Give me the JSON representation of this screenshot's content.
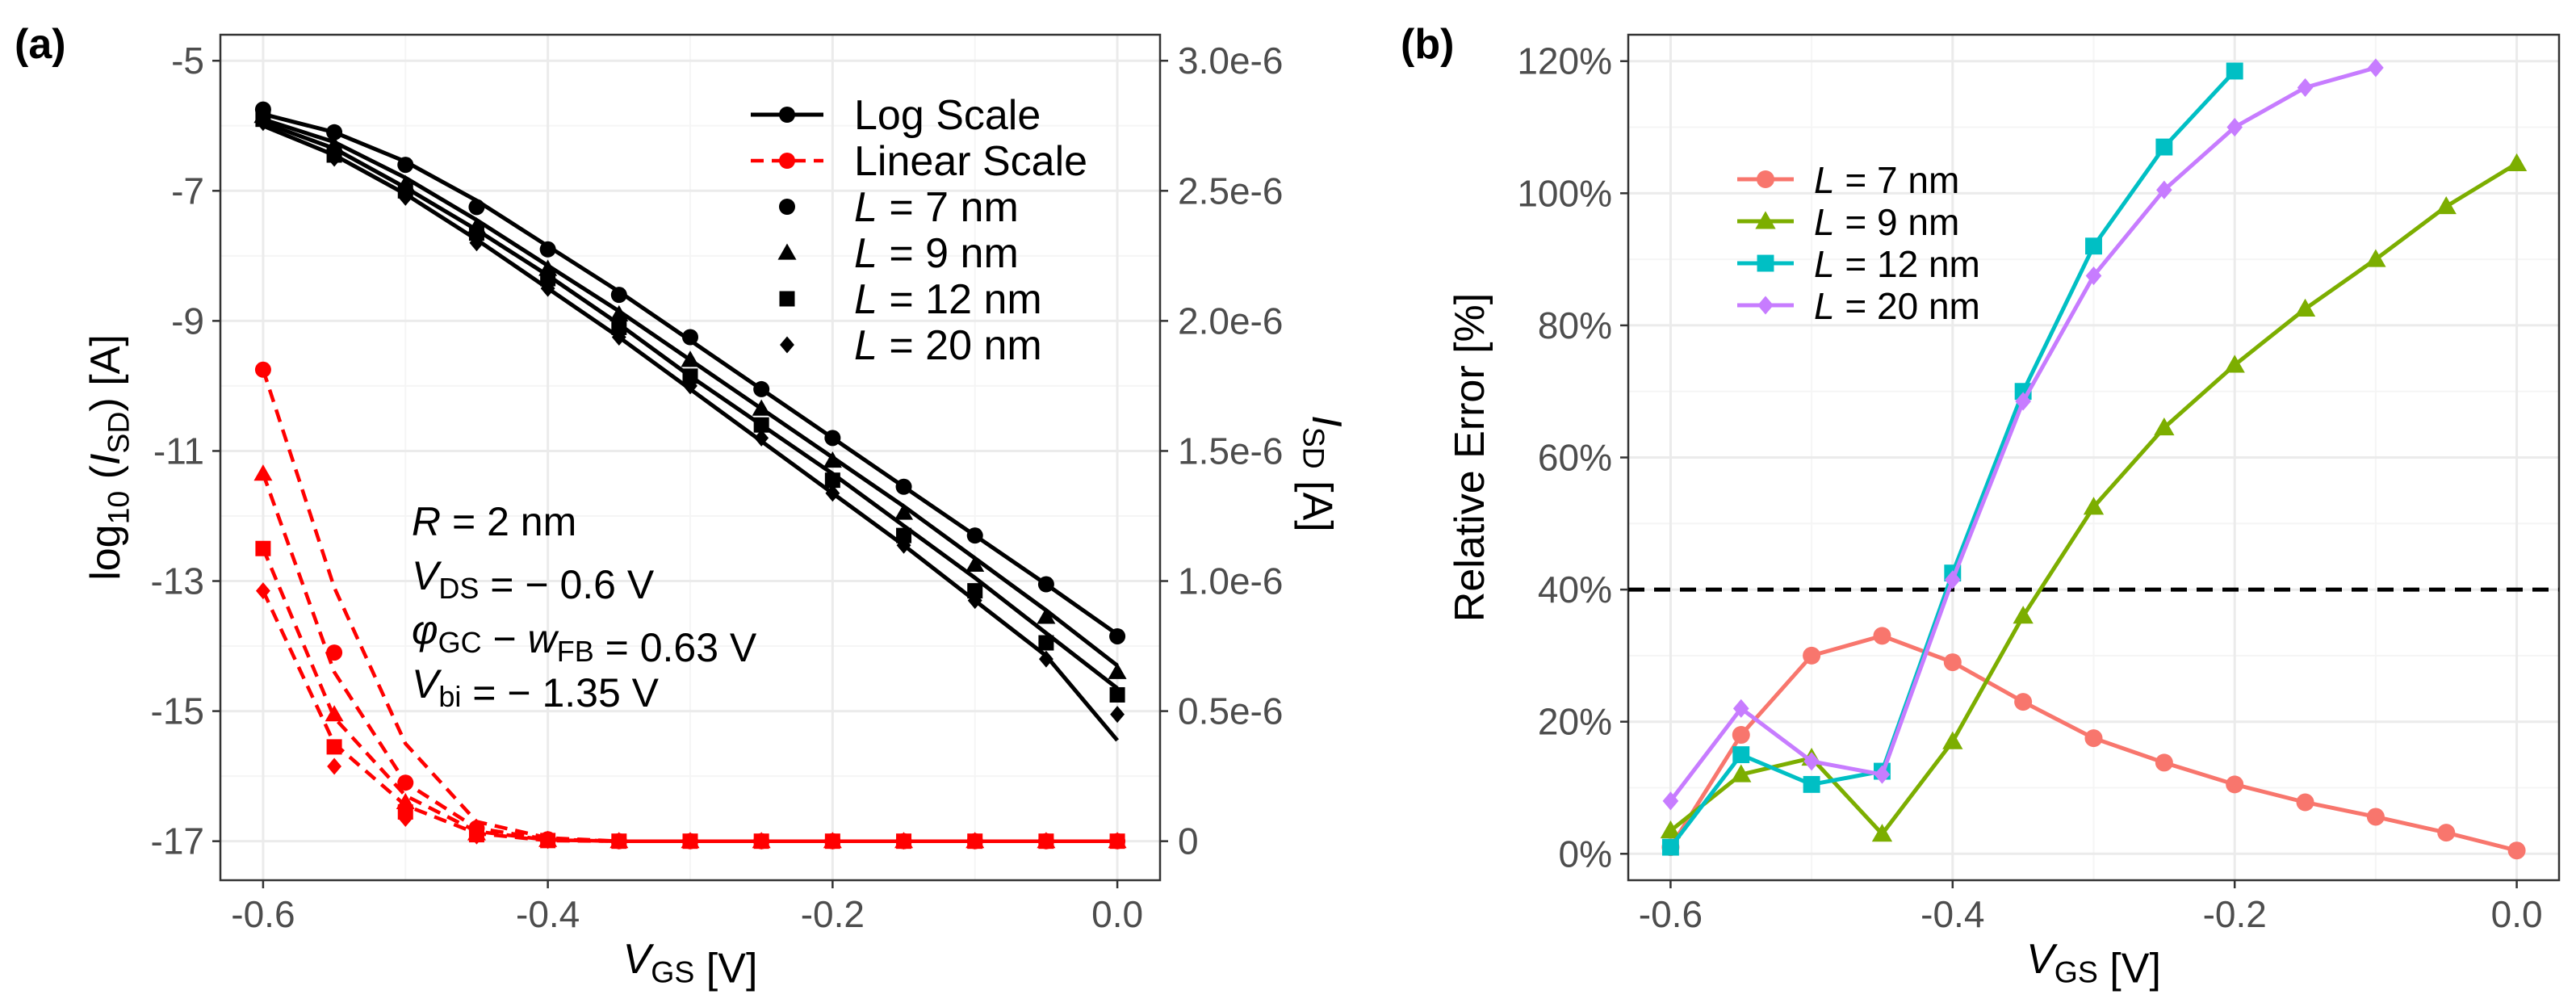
{
  "panel_labels": {
    "a": "(a)",
    "b": "(b)"
  },
  "chart_data": [
    {
      "type": "line",
      "panel": "(a)",
      "xlabel": {
        "main": "V",
        "sub": "GS",
        "unit": " [V]"
      },
      "ylabel_left": {
        "prefix": "log",
        "base": "10",
        "open": "(",
        "var": "I",
        "sub": "SD",
        "close": ")",
        "unit": " [A]"
      },
      "ylabel_right": {
        "var": "I",
        "sub": "SD",
        "unit": " [A]"
      },
      "xlim": [
        -0.63,
        0.03
      ],
      "ylim_left": [
        -17.6,
        -4.6
      ],
      "ylim_right_scale": "linear, 0 at -17 and 3.0e-6 at -5 on the left axis",
      "x_ticks": [
        -0.6,
        -0.4,
        -0.2,
        0.0
      ],
      "x_tick_labels": [
        "-0.6",
        "-0.4",
        "-0.2",
        "0.0"
      ],
      "y_left_ticks": [
        -5,
        -7,
        -9,
        -11,
        -13,
        -15,
        -17
      ],
      "y_left_tick_labels": [
        "-5",
        "-7",
        "-9",
        "-11",
        "-13",
        "-15",
        "-17"
      ],
      "y_right_ticks": [
        3e-06,
        2.5e-06,
        2e-06,
        1.5e-06,
        1e-06,
        5e-07,
        0
      ],
      "y_right_tick_labels": [
        "3.0e-6",
        "2.5e-6",
        "2.0e-6",
        "1.5e-6",
        "1.0e-6",
        "0.5e-6",
        "0"
      ],
      "grid": true,
      "legend_position": "top-right",
      "legend": [
        {
          "label": "Log Scale",
          "kind": "line-solid",
          "color": "#000000",
          "shape": "circle"
        },
        {
          "label": "Linear Scale",
          "kind": "line-dashed",
          "color": "#ff0000",
          "shape": "circle"
        },
        {
          "label": "L",
          "suffix": " = 7 nm",
          "kind": "point",
          "color": "#000000",
          "shape": "circle"
        },
        {
          "label": "L",
          "suffix": " = 9 nm",
          "kind": "point",
          "color": "#000000",
          "shape": "triangle"
        },
        {
          "label": "L",
          "suffix": " = 12 nm",
          "kind": "point",
          "color": "#000000",
          "shape": "square"
        },
        {
          "label": "L",
          "suffix": " = 20 nm",
          "kind": "point",
          "color": "#000000",
          "shape": "diamond"
        }
      ],
      "annotations": [
        {
          "var": "R",
          "sub": "",
          "text": " =  2 nm"
        },
        {
          "var": "V",
          "sub": "DS",
          "text": " = − 0.6 V"
        },
        {
          "var": "φ",
          "sub": "GC",
          "text": " − ",
          "var2": "w",
          "sub2": "FB",
          "text2": " = 0.63 V"
        },
        {
          "var": "V",
          "sub": "bi",
          "text": " = − 1.35 V"
        }
      ],
      "x": [
        -0.6,
        -0.55,
        -0.5,
        -0.45,
        -0.4,
        -0.35,
        -0.3,
        -0.25,
        -0.2,
        -0.15,
        -0.1,
        -0.05,
        0.0
      ],
      "log_series": [
        {
          "name": "L = 7 nm",
          "shape": "circle",
          "points": [
            -5.75,
            -6.1,
            -6.6,
            -7.25,
            -7.9,
            -8.6,
            -9.25,
            -10.05,
            -10.8,
            -11.55,
            -12.3,
            -13.05,
            -13.85
          ],
          "line": [
            -5.82,
            -6.1,
            -6.55,
            -7.15,
            -7.85,
            -8.55,
            -9.3,
            -10.05,
            -10.8,
            -11.55,
            -12.3,
            -13.05,
            -13.82
          ]
        },
        {
          "name": "L = 9 nm",
          "shape": "triangle",
          "points": [
            -5.85,
            -6.3,
            -6.9,
            -7.55,
            -8.2,
            -8.9,
            -9.6,
            -10.35,
            -11.15,
            -11.95,
            -12.75,
            -13.55,
            -14.4
          ],
          "line": [
            -5.9,
            -6.25,
            -6.8,
            -7.45,
            -8.15,
            -8.85,
            -9.6,
            -10.35,
            -11.1,
            -11.85,
            -12.65,
            -13.45,
            -14.3
          ]
        },
        {
          "name": "L = 12 nm",
          "shape": "square",
          "points": [
            -5.9,
            -6.45,
            -7.0,
            -7.65,
            -8.35,
            -9.1,
            -9.85,
            -10.6,
            -11.45,
            -12.3,
            -13.15,
            -13.95,
            -14.75
          ],
          "line": [
            -5.95,
            -6.35,
            -6.95,
            -7.6,
            -8.3,
            -9.05,
            -9.85,
            -10.6,
            -11.35,
            -12.15,
            -12.95,
            -13.8,
            -14.65
          ]
        },
        {
          "name": "L = 20 nm",
          "shape": "diamond",
          "points": [
            -5.95,
            -6.5,
            -7.1,
            -7.8,
            -8.5,
            -9.25,
            -10.0,
            -10.8,
            -11.65,
            -12.45,
            -13.3,
            -14.2,
            -15.05
          ],
          "line": [
            -6.0,
            -6.45,
            -7.05,
            -7.75,
            -8.5,
            -9.25,
            -10.05,
            -10.85,
            -11.65,
            -12.45,
            -13.3,
            -14.15,
            -15.45
          ]
        }
      ],
      "linear_series_on_left_axis": [
        {
          "name": "L = 7 nm",
          "shape": "circle",
          "points": [
            -9.75,
            -14.1,
            -16.1,
            -16.8,
            -16.97,
            -17.0,
            -17.0,
            -17.0,
            -17.0,
            -17.0,
            -17.0,
            -17.0,
            -17.0
          ],
          "line": [
            -9.75,
            -13.1,
            -15.5,
            -16.7,
            -16.95,
            -17.0,
            -17.0,
            -17.0,
            -17.0,
            -17.0,
            -17.0,
            -17.0,
            -17.0
          ]
        },
        {
          "name": "L = 9 nm",
          "shape": "triangle",
          "points": [
            -11.35,
            -15.05,
            -16.4,
            -16.88,
            -16.98,
            -17.0,
            -17.0,
            -17.0,
            -17.0,
            -17.0,
            -17.0,
            -17.0,
            -17.0
          ],
          "line": [
            -11.35,
            -14.4,
            -16.1,
            -16.8,
            -16.97,
            -17.0,
            -17.0,
            -17.0,
            -17.0,
            -17.0,
            -17.0,
            -17.0,
            -17.0
          ]
        },
        {
          "name": "L = 12 nm",
          "shape": "square",
          "points": [
            -12.5,
            -15.55,
            -16.55,
            -16.9,
            -16.99,
            -17.0,
            -17.0,
            -17.0,
            -17.0,
            -17.0,
            -17.0,
            -17.0,
            -17.0
          ],
          "line": [
            -12.5,
            -15.1,
            -16.3,
            -16.85,
            -16.98,
            -17.0,
            -17.0,
            -17.0,
            -17.0,
            -17.0,
            -17.0,
            -17.0,
            -17.0
          ]
        },
        {
          "name": "L = 20 nm",
          "shape": "diamond",
          "points": [
            -13.15,
            -15.85,
            -16.65,
            -16.92,
            -16.99,
            -17.0,
            -17.0,
            -17.0,
            -17.0,
            -17.0,
            -17.0,
            -17.0,
            -17.0
          ],
          "line": [
            -13.15,
            -15.5,
            -16.45,
            -16.88,
            -16.99,
            -17.0,
            -17.0,
            -17.0,
            -17.0,
            -17.0,
            -17.0,
            -17.0,
            -17.0
          ]
        }
      ],
      "colors": {
        "log": "#000000",
        "linear": "#ff0000"
      }
    },
    {
      "type": "line",
      "panel": "(b)",
      "xlabel": {
        "main": "V",
        "sub": "GS",
        "unit": " [V]"
      },
      "ylabel": "Relative Error [%]",
      "xlim": [
        -0.63,
        0.03
      ],
      "ylim": [
        -4,
        124
      ],
      "x_ticks": [
        -0.6,
        -0.4,
        -0.2,
        0.0
      ],
      "x_tick_labels": [
        "-0.6",
        "-0.4",
        "-0.2",
        "0.0"
      ],
      "y_ticks": [
        0,
        20,
        40,
        60,
        80,
        100,
        120
      ],
      "y_tick_labels": [
        "0%",
        "20%",
        "40%",
        "60%",
        "80%",
        "100%",
        "120%"
      ],
      "grid": true,
      "legend_position": "top-left",
      "reference_line": {
        "y": 40,
        "style": "dashed",
        "color": "#000000"
      },
      "series": [
        {
          "name": "L = 7 nm",
          "var": "L",
          "suffix": " = 7 nm",
          "color": "#f8766d",
          "shape": "circle",
          "x": [
            -0.6,
            -0.55,
            -0.5,
            -0.45,
            -0.4,
            -0.35,
            -0.3,
            -0.25,
            -0.2,
            -0.15,
            -0.1,
            -0.05,
            0.0
          ],
          "values": [
            1,
            18,
            30,
            33,
            29,
            23,
            17.5,
            13.8,
            10.5,
            7.8,
            5.6,
            3.2,
            0.5
          ]
        },
        {
          "name": "L = 9 nm",
          "var": "L",
          "suffix": " = 9 nm",
          "color": "#7cae00",
          "shape": "triangle",
          "x": [
            -0.6,
            -0.55,
            -0.5,
            -0.45,
            -0.4,
            -0.35,
            -0.3,
            -0.25,
            -0.2,
            -0.15,
            -0.1,
            -0.05,
            0.0
          ],
          "values": [
            3.5,
            12,
            14.5,
            3,
            17,
            36,
            52.5,
            64.5,
            74,
            82.5,
            90,
            98,
            104.5
          ]
        },
        {
          "name": "L = 12 nm",
          "var": "L",
          "suffix": " = 12 nm",
          "color": "#00bfc4",
          "shape": "square",
          "x": [
            -0.6,
            -0.55,
            -0.5,
            -0.45,
            -0.4,
            -0.35,
            -0.3,
            -0.25,
            -0.2
          ],
          "values": [
            1,
            15,
            10.5,
            12.5,
            42.5,
            70,
            92,
            107,
            118.5
          ]
        },
        {
          "name": "L = 20 nm",
          "var": "L",
          "suffix": " = 20 nm",
          "color": "#c77cff",
          "shape": "diamond",
          "x": [
            -0.6,
            -0.55,
            -0.5,
            -0.45,
            -0.4,
            -0.35,
            -0.3,
            -0.25,
            -0.2,
            -0.15,
            -0.1
          ],
          "values": [
            8,
            22,
            14,
            12,
            41.5,
            68.5,
            87.5,
            100.5,
            110,
            116,
            119
          ]
        }
      ]
    }
  ]
}
